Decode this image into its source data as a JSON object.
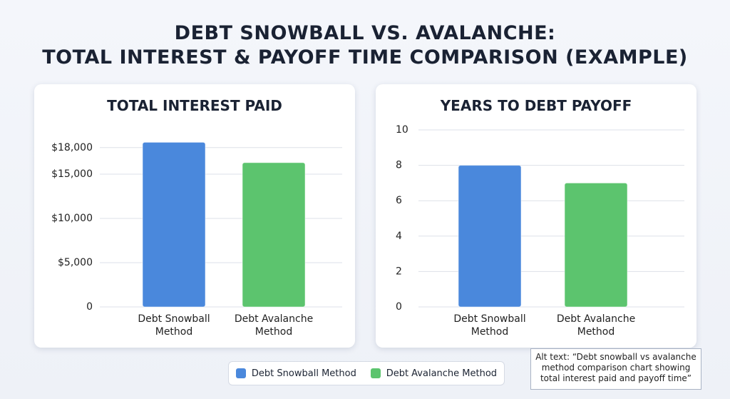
{
  "title": [
    "DEBT SNOWBALL VS. AVALANCHE:",
    "TOTAL INTEREST & PAYOFF TIME COMPARISON (EXAMPLE)"
  ],
  "chart_data": [
    {
      "type": "bar",
      "title": "TOTAL INTEREST PAID",
      "categories": [
        "Debt Snowball Method",
        "Debt Avalanche Method"
      ],
      "values": [
        18600,
        16300
      ],
      "colors": [
        "#4a88dc",
        "#5cc46e"
      ],
      "ylim": [
        0,
        20000
      ],
      "yticks": [
        0,
        {
          "value": 5000,
          "label": "$5,000"
        },
        {
          "value": 10000,
          "label": "$10,000"
        },
        {
          "value": 15000,
          "label": "$15,000"
        },
        {
          "value": 18000,
          "label": "$18,000"
        }
      ],
      "grid": true
    },
    {
      "type": "bar",
      "title": "YEARS TO DEBT PAYOFF",
      "categories": [
        "Debt Snowball Method",
        "Debt Avalanche Method"
      ],
      "values": [
        8,
        7
      ],
      "colors": [
        "#4a88dc",
        "#5cc46e"
      ],
      "ylim": [
        0,
        10
      ],
      "yticks": [
        0,
        2,
        4,
        6,
        8,
        10
      ],
      "grid": true
    }
  ],
  "alt_text": "Alt text: “Debt snowball vs avalanche method comparison chart showing total interest paid and payoff time”"
}
